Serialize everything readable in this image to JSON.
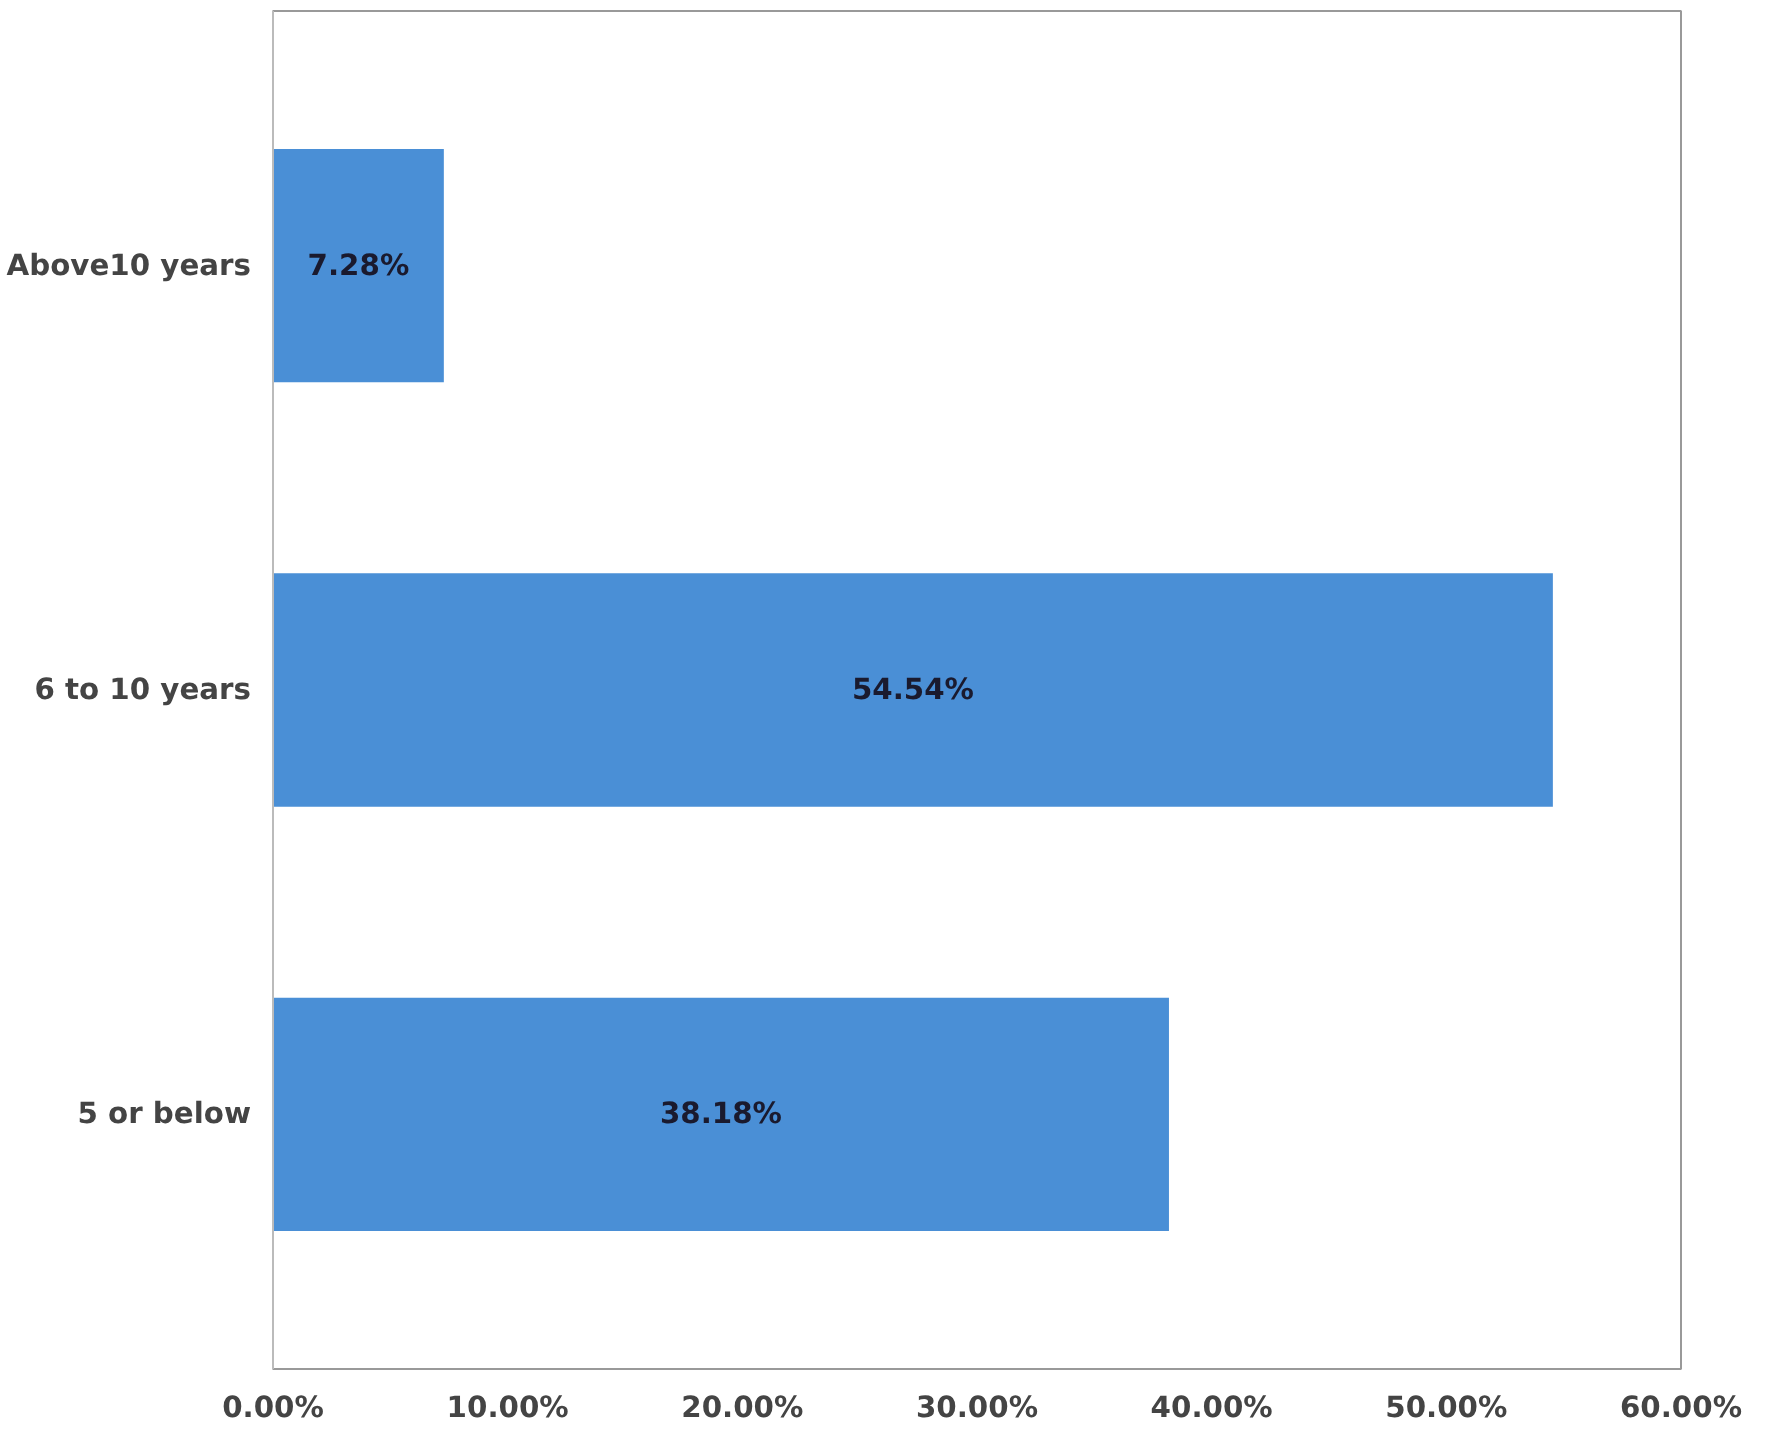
{
  "chart_data": {
    "type": "bar",
    "orientation": "horizontal",
    "categories": [
      "Above10 years",
      "6 to 10 years",
      "5 or below"
    ],
    "values": [
      7.28,
      54.54,
      38.18
    ],
    "value_labels": [
      "7.28%",
      "54.54%",
      "38.18%"
    ],
    "color": "#4a8fd6",
    "xlim": [
      0,
      60
    ],
    "xticks": [
      {
        "value": 0,
        "label": "0.00%"
      },
      {
        "value": 10,
        "label": "10.00%"
      },
      {
        "value": 20,
        "label": "20.00%"
      },
      {
        "value": 30,
        "label": "30.00%"
      },
      {
        "value": 40,
        "label": "40.00%"
      },
      {
        "value": 50,
        "label": "50.00%"
      },
      {
        "value": 60,
        "label": "60.00%"
      }
    ],
    "grid": false
  }
}
